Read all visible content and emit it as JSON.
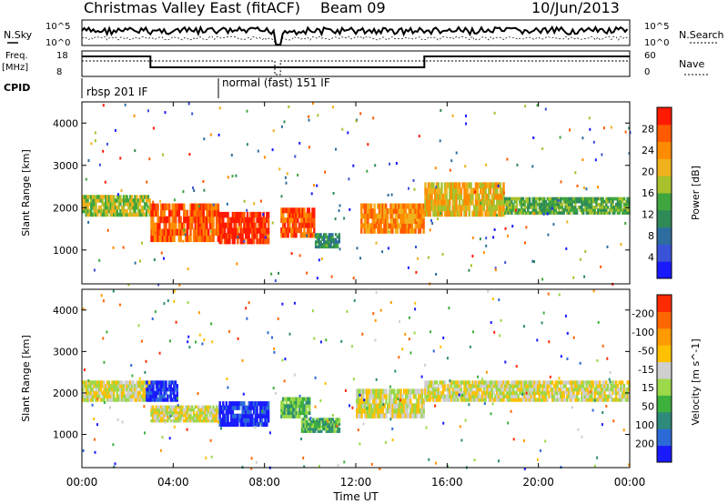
{
  "header": {
    "title": "Christmas Valley East (fitACF)",
    "beam": "Beam 09",
    "date": "10/Jun/2013"
  },
  "top_panels": {
    "nsky_label": "N.Sky",
    "nsearch_label": "N.Search",
    "noise_ticks": [
      "10^5",
      "10^0"
    ],
    "freq_label_line1": "Freq.",
    "freq_label_line2": "[MHz]",
    "freq_ticks": [
      "18",
      "8"
    ],
    "nave_label": "Nave",
    "nave_ticks": [
      "60",
      "0"
    ],
    "cpid_label": "CPID",
    "cpid_segments": [
      {
        "label": "rbsp 201 IF",
        "start_h": 0.0,
        "end_h": 6.0
      },
      {
        "label": "normal (fast) 151 IF",
        "start_h": 6.0,
        "end_h": 24.0
      }
    ]
  },
  "chart_data": [
    {
      "type": "heatmap",
      "name": "power-panel",
      "ylabel": "Slant Range [km]",
      "y_ticks": [
        1000,
        2000,
        3000,
        4000
      ],
      "ylim": [
        200,
        4500
      ],
      "xlim": [
        0,
        24
      ],
      "colorbar": {
        "label": "Power [dB]",
        "ticks": [
          "4",
          "8",
          "12",
          "16",
          "20",
          "24",
          "28"
        ],
        "colors": [
          "#1a1aff",
          "#3a52d8",
          "#2e6e9e",
          "#2f8a58",
          "#3fa53f",
          "#a8c12c",
          "#f0b11c",
          "#ff8c00",
          "#ff5a00",
          "#ff1a00"
        ]
      },
      "bands": [
        {
          "t0": 0.0,
          "t1": 3.0,
          "r0": 1800,
          "r1": 2300,
          "level": 5
        },
        {
          "t0": 3.0,
          "t1": 6.0,
          "r0": 1200,
          "r1": 2100,
          "level": 8
        },
        {
          "t0": 6.0,
          "t1": 8.2,
          "r0": 1150,
          "r1": 1900,
          "level": 9
        },
        {
          "t0": 8.7,
          "t1": 10.2,
          "r0": 1300,
          "r1": 2000,
          "level": 8
        },
        {
          "t0": 10.2,
          "t1": 11.3,
          "r0": 1050,
          "r1": 1400,
          "level": 3
        },
        {
          "t0": 12.2,
          "t1": 15.0,
          "r0": 1400,
          "r1": 2100,
          "level": 7
        },
        {
          "t0": 15.0,
          "t1": 18.5,
          "r0": 1800,
          "r1": 2600,
          "level": 6
        },
        {
          "t0": 18.5,
          "t1": 24.0,
          "r0": 1850,
          "r1": 2250,
          "level": 4
        }
      ]
    },
    {
      "type": "heatmap",
      "name": "velocity-panel",
      "ylabel": "Slant Range [km]",
      "y_ticks": [
        1000,
        2000,
        3000,
        4000
      ],
      "ylim": [
        200,
        4500
      ],
      "xlim": [
        0,
        24
      ],
      "x_ticks": [
        "00:00",
        "04:00",
        "08:00",
        "12:00",
        "16:00",
        "20:00",
        "00:00"
      ],
      "xlabel": "Time UT",
      "colorbar": {
        "label": "Velocity [m s^-1]",
        "ticks": [
          "200",
          "100",
          "50",
          "15",
          "-15",
          "-50",
          "-100",
          "-200"
        ],
        "colors": [
          "#1a1aff",
          "#2c6ad8",
          "#2e8a7a",
          "#3db03d",
          "#9bd84a",
          "#cfcfcf",
          "#ffc000",
          "#ff9a00",
          "#ff6600",
          "#ff2a00"
        ]
      },
      "bands": [
        {
          "t0": 0.0,
          "t1": 3.0,
          "r0": 1800,
          "r1": 2300,
          "level": 5
        },
        {
          "t0": 2.8,
          "t1": 4.2,
          "r0": 1800,
          "r1": 2300,
          "level": 0
        },
        {
          "t0": 3.0,
          "t1": 6.0,
          "r0": 1300,
          "r1": 1700,
          "level": 5
        },
        {
          "t0": 6.0,
          "t1": 8.2,
          "r0": 1200,
          "r1": 1800,
          "level": 0
        },
        {
          "t0": 8.7,
          "t1": 10.0,
          "r0": 1400,
          "r1": 1900,
          "level": 3
        },
        {
          "t0": 9.6,
          "t1": 11.3,
          "r0": 1050,
          "r1": 1400,
          "level": 3
        },
        {
          "t0": 12.0,
          "t1": 15.0,
          "r0": 1400,
          "r1": 2100,
          "level": 5
        },
        {
          "t0": 15.0,
          "t1": 24.0,
          "r0": 1800,
          "r1": 2300,
          "level": 5
        }
      ]
    }
  ]
}
